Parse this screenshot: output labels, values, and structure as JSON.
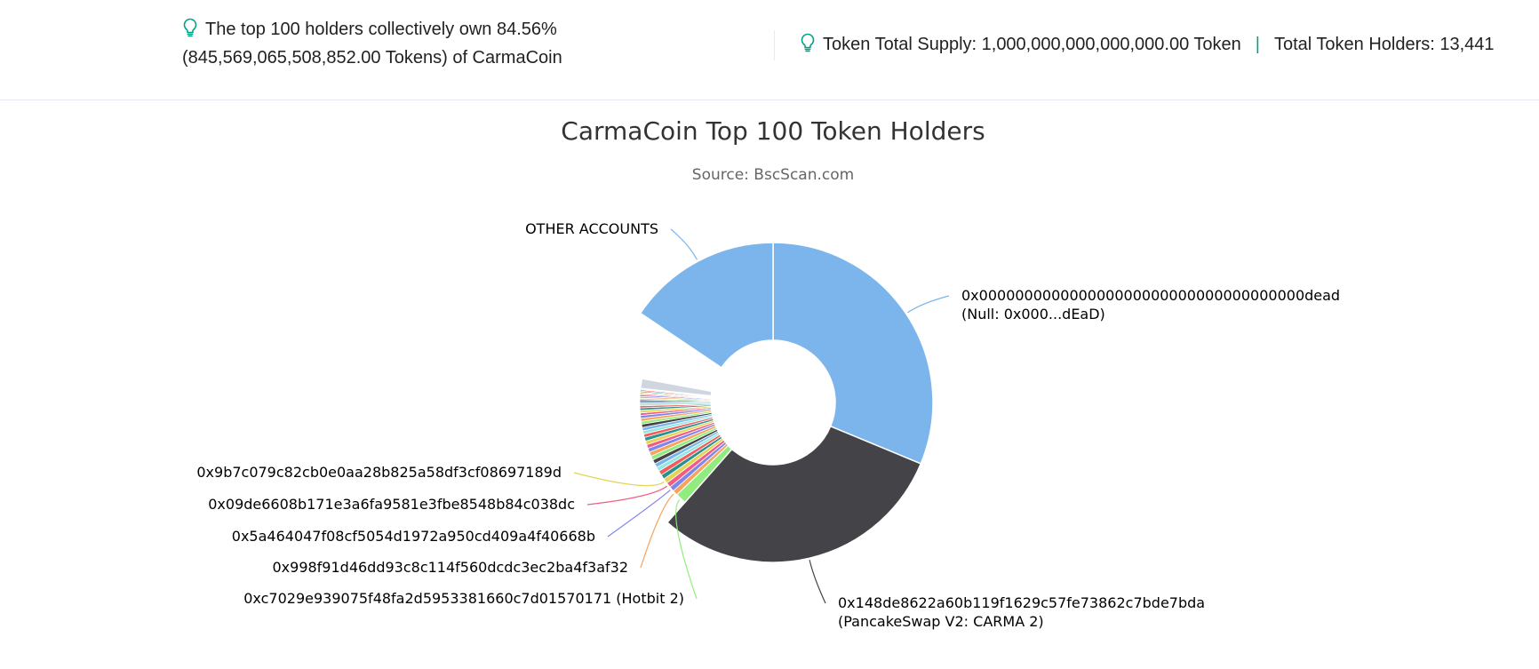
{
  "summary": {
    "top_holders_text": "The top 100 holders collectively own 84.56% (845,569,065,508,852.00 Tokens) of CarmaCoin",
    "total_supply_text": "Token Total Supply: 1,000,000,000,000,000.00 Token",
    "separator": "|",
    "total_holders_text": "Total Token Holders: 13,441"
  },
  "icons": {
    "info": "lightbulb-icon"
  },
  "colors": {
    "accent": "#00a186",
    "divider": "#e7eaf3"
  },
  "chart_data": {
    "type": "pie",
    "title": "CarmaCoin Top 100 Token Holders",
    "subtitle": "Source: BscScan.com",
    "center_hole": true,
    "slices": [
      {
        "label": "0x000000000000000000000000000000000000dead (Null: 0x000...dEaD)",
        "label_lines": [
          "0x000000000000000000000000000000000000dead",
          "(Null: 0x000...dEaD)"
        ],
        "value": 31.0,
        "color": "#7cb5ec",
        "side": "right",
        "outer_r": 180
      },
      {
        "label": "0x148de8622a60b119f1629c57fe73862c7bde7bda (PancakeSwap V2: CARMA 2)",
        "label_lines": [
          "0x148de8622a60b119f1629c57fe73862c7bde7bda",
          "(PancakeSwap V2: CARMA 2)"
        ],
        "value": 30.0,
        "color": "#434348",
        "side": "right",
        "outer_r": 180
      },
      {
        "label": "0xc7029e939075f48fa2d5953381660c7d01570171 (Hotbit 2)",
        "label_lines": [
          "0xc7029e939075f48fa2d5953381660c7d01570171 (Hotbit 2)"
        ],
        "value": 1.35,
        "color": "#90ed7d",
        "side": "left",
        "outer_r": 150
      },
      {
        "label": "0x998f91d46dd93c8c114f560dcdc3ec2ba4f3af32",
        "label_lines": [
          "0x998f91d46dd93c8c114f560dcdc3ec2ba4f3af32"
        ],
        "value": 0.6,
        "color": "#f7a35c",
        "side": "left",
        "outer_r": 150
      },
      {
        "label": "0x5a464047f08cf5054d1972a950cd409a4f40668b",
        "label_lines": [
          "0x5a464047f08cf5054d1972a950cd409a4f40668b"
        ],
        "value": 0.6,
        "color": "#8085e9",
        "side": "left",
        "outer_r": 150
      },
      {
        "label": "0x09de6608b171e3a6fa9581e3fbe8548b84c038dc",
        "label_lines": [
          "0x09de6608b171e3a6fa9581e3fbe8548b84c038dc"
        ],
        "value": 0.6,
        "color": "#f15c80",
        "side": "left",
        "outer_r": 150
      },
      {
        "label": "0x9b7c079c82cb0e0aa28b825a58df3cf08697189d",
        "label_lines": [
          "0x9b7c079c82cb0e0aa28b825a58df3cf08697189d"
        ],
        "value": 0.6,
        "color": "#e4d354",
        "side": "left",
        "outer_r": 150
      },
      {
        "label": "",
        "value": 0.55,
        "color": "#2b908f",
        "outer_r": 150
      },
      {
        "label": "",
        "value": 0.55,
        "color": "#f45b5b",
        "outer_r": 150
      },
      {
        "label": "",
        "value": 0.5,
        "color": "#91e8e1",
        "outer_r": 150
      },
      {
        "label": "",
        "value": 0.5,
        "color": "#7cb5ec",
        "outer_r": 150
      },
      {
        "label": "",
        "value": 0.5,
        "color": "#434348",
        "outer_r": 150
      },
      {
        "label": "",
        "value": 0.5,
        "color": "#90ed7d",
        "outer_r": 150
      },
      {
        "label": "",
        "value": 0.5,
        "color": "#f7a35c",
        "outer_r": 150
      },
      {
        "label": "",
        "value": 0.5,
        "color": "#8085e9",
        "outer_r": 150
      },
      {
        "label": "",
        "value": 0.45,
        "color": "#f15c80",
        "outer_r": 150
      },
      {
        "label": "",
        "value": 0.45,
        "color": "#e4d354",
        "outer_r": 150
      },
      {
        "label": "",
        "value": 0.45,
        "color": "#2b908f",
        "outer_r": 150
      },
      {
        "label": "",
        "value": 0.4,
        "color": "#f45b5b",
        "outer_r": 150
      },
      {
        "label": "",
        "value": 0.4,
        "color": "#91e8e1",
        "outer_r": 150
      },
      {
        "label": "",
        "value": 0.4,
        "color": "#7cb5ec",
        "outer_r": 150
      },
      {
        "label": "",
        "value": 0.4,
        "color": "#434348",
        "outer_r": 150
      },
      {
        "label": "",
        "value": 0.35,
        "color": "#90ed7d",
        "outer_r": 150
      },
      {
        "label": "",
        "value": 0.35,
        "color": "#f7a35c",
        "outer_r": 150
      },
      {
        "label": "",
        "value": 0.35,
        "color": "#8085e9",
        "outer_r": 150
      },
      {
        "label": "",
        "value": 0.3,
        "color": "#f15c80",
        "outer_r": 150
      },
      {
        "label": "",
        "value": 0.3,
        "color": "#e4d354",
        "outer_r": 150
      },
      {
        "label": "",
        "value": 0.3,
        "color": "#2b908f",
        "outer_r": 150
      },
      {
        "label": "",
        "value": 0.25,
        "color": "#f45b5b",
        "outer_r": 150
      },
      {
        "label": "",
        "value": 0.25,
        "color": "#91e8e1",
        "outer_r": 150
      },
      {
        "label": "",
        "value": 0.25,
        "color": "#7cb5ec",
        "outer_r": 150
      },
      {
        "label": "",
        "value": 0.2,
        "color": "#434348",
        "outer_r": 150
      },
      {
        "label": "",
        "value": 0.2,
        "color": "#90ed7d",
        "outer_r": 150
      },
      {
        "label": "",
        "value": 0.2,
        "color": "#f7a35c",
        "outer_r": 150
      },
      {
        "label": "",
        "value": 0.2,
        "color": "#8085e9",
        "outer_r": 150
      },
      {
        "label": "",
        "value": 0.15,
        "color": "#f15c80",
        "outer_r": 150
      },
      {
        "label": "",
        "value": 0.15,
        "color": "#e4d354",
        "outer_r": 150
      },
      {
        "label": "",
        "value": 0.15,
        "color": "#2b908f",
        "outer_r": 150
      },
      {
        "label": "",
        "value": 0.15,
        "color": "#f45b5b",
        "outer_r": 150
      },
      {
        "label": "",
        "value": 0.15,
        "color": "#91e8e1",
        "outer_r": 150
      },
      {
        "label": "",
        "value": 1.2,
        "color": "#cfd6e0",
        "outer_r": 150
      },
      {
        "label": "",
        "value": 6.5,
        "color": "#ffffff",
        "outer_r": 150
      },
      {
        "label": "OTHER ACCOUNTS",
        "label_lines": [
          "OTHER ACCOUNTS"
        ],
        "value": 15.44,
        "color": "#7cb5ec",
        "side": "left",
        "outer_r": 180
      }
    ]
  }
}
